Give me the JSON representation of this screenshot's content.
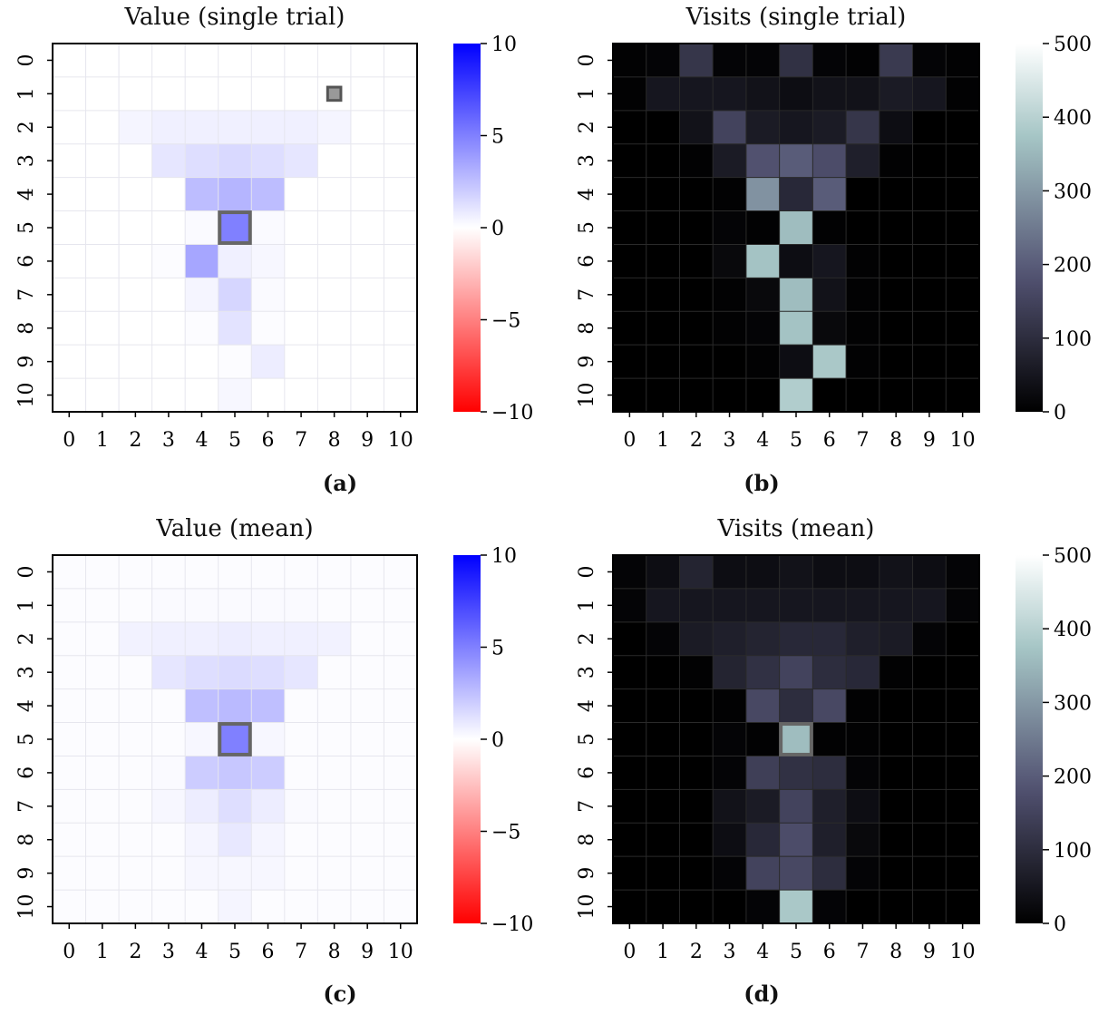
{
  "panels": [
    {
      "caption": "(a)",
      "chart_data": {
        "type": "heatmap",
        "title": "Value (single trial)",
        "x_ticks": [
          "0",
          "1",
          "2",
          "3",
          "4",
          "5",
          "6",
          "7",
          "8",
          "9",
          "10"
        ],
        "y_ticks": [
          "0",
          "1",
          "2",
          "3",
          "4",
          "5",
          "6",
          "7",
          "8",
          "9",
          "10"
        ],
        "colormap": "white-blue-red diverging",
        "colorbar": {
          "vmin": -10,
          "vmax": 10,
          "ticks": [
            "10",
            "5",
            "0",
            "−5",
            "−10"
          ]
        },
        "highlighted_cells": [
          [
            5,
            5
          ],
          [
            1,
            8
          ]
        ],
        "values": [
          [
            0,
            0,
            0,
            0,
            0,
            0,
            0,
            0,
            0,
            0,
            0
          ],
          [
            0,
            0,
            0,
            0,
            0,
            0,
            0,
            0,
            0,
            0,
            0
          ],
          [
            0,
            0,
            0.4,
            0.6,
            0.6,
            0.6,
            0.6,
            0.6,
            0.4,
            0,
            0
          ],
          [
            0,
            0,
            0,
            1.0,
            1.3,
            1.5,
            1.3,
            1.0,
            0,
            0,
            0
          ],
          [
            0,
            0,
            0,
            0,
            2.6,
            2.9,
            2.6,
            0,
            0,
            0,
            0
          ],
          [
            0,
            0,
            0,
            0,
            0.2,
            5.0,
            0.2,
            0,
            0,
            0,
            0
          ],
          [
            0,
            0,
            0,
            0.1,
            3.5,
            0.6,
            0.3,
            0,
            0,
            0,
            0
          ],
          [
            0,
            0,
            0,
            0,
            0.4,
            1.6,
            0.2,
            0,
            0,
            0,
            0
          ],
          [
            0,
            0,
            0,
            0,
            0.1,
            1.1,
            0.1,
            0,
            0,
            0,
            0
          ],
          [
            0,
            0,
            0,
            0,
            0,
            0.1,
            0.7,
            0,
            0,
            0,
            0
          ],
          [
            0,
            0,
            0,
            0,
            0,
            0.3,
            0,
            0,
            0,
            0,
            0
          ]
        ]
      }
    },
    {
      "caption": "(b)",
      "chart_data": {
        "type": "heatmap",
        "title": "Visits (single trial)",
        "x_ticks": [
          "0",
          "1",
          "2",
          "3",
          "4",
          "5",
          "6",
          "7",
          "8",
          "9",
          "10"
        ],
        "y_ticks": [
          "0",
          "1",
          "2",
          "3",
          "4",
          "5",
          "6",
          "7",
          "8",
          "9",
          "10"
        ],
        "colormap": "bone",
        "colorbar": {
          "vmin": 0,
          "vmax": 500,
          "ticks": [
            "500",
            "400",
            "300",
            "200",
            "100",
            "0"
          ]
        },
        "highlighted_cells": [],
        "values": [
          [
            5,
            10,
            120,
            10,
            10,
            110,
            10,
            5,
            130,
            10,
            5
          ],
          [
            5,
            50,
            50,
            50,
            40,
            30,
            40,
            40,
            60,
            50,
            5
          ],
          [
            0,
            0,
            40,
            150,
            60,
            50,
            60,
            120,
            30,
            0,
            0
          ],
          [
            0,
            0,
            5,
            60,
            180,
            200,
            170,
            70,
            5,
            0,
            0
          ],
          [
            0,
            0,
            0,
            5,
            290,
            90,
            200,
            0,
            0,
            0,
            0
          ],
          [
            0,
            0,
            0,
            10,
            5,
            360,
            5,
            0,
            0,
            0,
            0
          ],
          [
            0,
            0,
            0,
            20,
            370,
            30,
            50,
            5,
            0,
            0,
            0
          ],
          [
            0,
            0,
            0,
            5,
            20,
            360,
            40,
            5,
            0,
            0,
            0
          ],
          [
            0,
            0,
            0,
            5,
            10,
            370,
            20,
            5,
            0,
            0,
            0
          ],
          [
            0,
            0,
            0,
            0,
            5,
            30,
            380,
            5,
            0,
            0,
            0
          ],
          [
            0,
            0,
            0,
            0,
            0,
            390,
            0,
            0,
            0,
            0,
            0
          ]
        ]
      }
    },
    {
      "caption": "(c)",
      "chart_data": {
        "type": "heatmap",
        "title": "Value (mean)",
        "x_ticks": [
          "0",
          "1",
          "2",
          "3",
          "4",
          "5",
          "6",
          "7",
          "8",
          "9",
          "10"
        ],
        "y_ticks": [
          "0",
          "1",
          "2",
          "3",
          "4",
          "5",
          "6",
          "7",
          "8",
          "9",
          "10"
        ],
        "colormap": "white-blue-red diverging",
        "colorbar": {
          "vmin": -10,
          "vmax": 10,
          "ticks": [
            "10",
            "5",
            "0",
            "−5",
            "−10"
          ]
        },
        "highlighted_cells": [
          [
            5,
            5
          ]
        ],
        "values": [
          [
            0.1,
            0.1,
            0.1,
            0.1,
            0.1,
            0.1,
            0.1,
            0.1,
            0.1,
            0.1,
            0.1
          ],
          [
            0.1,
            0.1,
            0.1,
            0.2,
            0.2,
            0.2,
            0.2,
            0.2,
            0.1,
            0.1,
            0.1
          ],
          [
            0.1,
            0.1,
            0.5,
            0.6,
            0.6,
            0.7,
            0.6,
            0.6,
            0.5,
            0.1,
            0.1
          ],
          [
            0.1,
            0.1,
            0.1,
            1.0,
            1.3,
            1.4,
            1.3,
            1.0,
            0.1,
            0.1,
            0.1
          ],
          [
            0.1,
            0.1,
            0.1,
            0.1,
            2.5,
            2.7,
            2.5,
            0.1,
            0.1,
            0.1,
            0.1
          ],
          [
            0.1,
            0.1,
            0.1,
            0.1,
            0.3,
            5.0,
            0.3,
            0.1,
            0.1,
            0.1,
            0.1
          ],
          [
            0.1,
            0.1,
            0.1,
            0.2,
            2.0,
            2.2,
            2.0,
            0.1,
            0.1,
            0.1,
            0.1
          ],
          [
            0.1,
            0.1,
            0.1,
            0.3,
            0.7,
            1.3,
            0.7,
            0.2,
            0.1,
            0.1,
            0.1
          ],
          [
            0.1,
            0.1,
            0.1,
            0.1,
            0.4,
            0.9,
            0.4,
            0.1,
            0.1,
            0.1,
            0.1
          ],
          [
            0.1,
            0.1,
            0.1,
            0.1,
            0.3,
            0.3,
            0.3,
            0.1,
            0.1,
            0.1,
            0.1
          ],
          [
            0.1,
            0.1,
            0.1,
            0.1,
            0.1,
            0.4,
            0.1,
            0.1,
            0.1,
            0.1,
            0.1
          ]
        ]
      }
    },
    {
      "caption": "(d)",
      "chart_data": {
        "type": "heatmap",
        "title": "Visits (mean)",
        "x_ticks": [
          "0",
          "1",
          "2",
          "3",
          "4",
          "5",
          "6",
          "7",
          "8",
          "9",
          "10"
        ],
        "y_ticks": [
          "0",
          "1",
          "2",
          "3",
          "4",
          "5",
          "6",
          "7",
          "8",
          "9",
          "10"
        ],
        "colormap": "bone",
        "colorbar": {
          "vmin": 0,
          "vmax": 500,
          "ticks": [
            "500",
            "400",
            "300",
            "200",
            "100",
            "0"
          ]
        },
        "highlighted_cells": [
          [
            5,
            5
          ]
        ],
        "values": [
          [
            10,
            30,
            80,
            30,
            30,
            40,
            30,
            30,
            40,
            30,
            10
          ],
          [
            10,
            50,
            50,
            50,
            50,
            50,
            50,
            50,
            50,
            50,
            10
          ],
          [
            0,
            10,
            60,
            70,
            80,
            90,
            90,
            70,
            60,
            10,
            0
          ],
          [
            0,
            0,
            5,
            80,
            110,
            150,
            100,
            90,
            5,
            0,
            0
          ],
          [
            0,
            0,
            0,
            5,
            160,
            100,
            160,
            5,
            0,
            0,
            0
          ],
          [
            0,
            0,
            0,
            10,
            5,
            360,
            5,
            5,
            0,
            0,
            0
          ],
          [
            0,
            0,
            0,
            10,
            140,
            110,
            100,
            10,
            0,
            0,
            0
          ],
          [
            0,
            0,
            0,
            40,
            60,
            150,
            70,
            30,
            0,
            0,
            0
          ],
          [
            0,
            0,
            0,
            30,
            90,
            170,
            70,
            20,
            0,
            0,
            0
          ],
          [
            0,
            0,
            0,
            10,
            150,
            160,
            100,
            10,
            0,
            0,
            0
          ],
          [
            0,
            0,
            0,
            0,
            10,
            380,
            10,
            0,
            0,
            0,
            0
          ]
        ]
      }
    }
  ]
}
